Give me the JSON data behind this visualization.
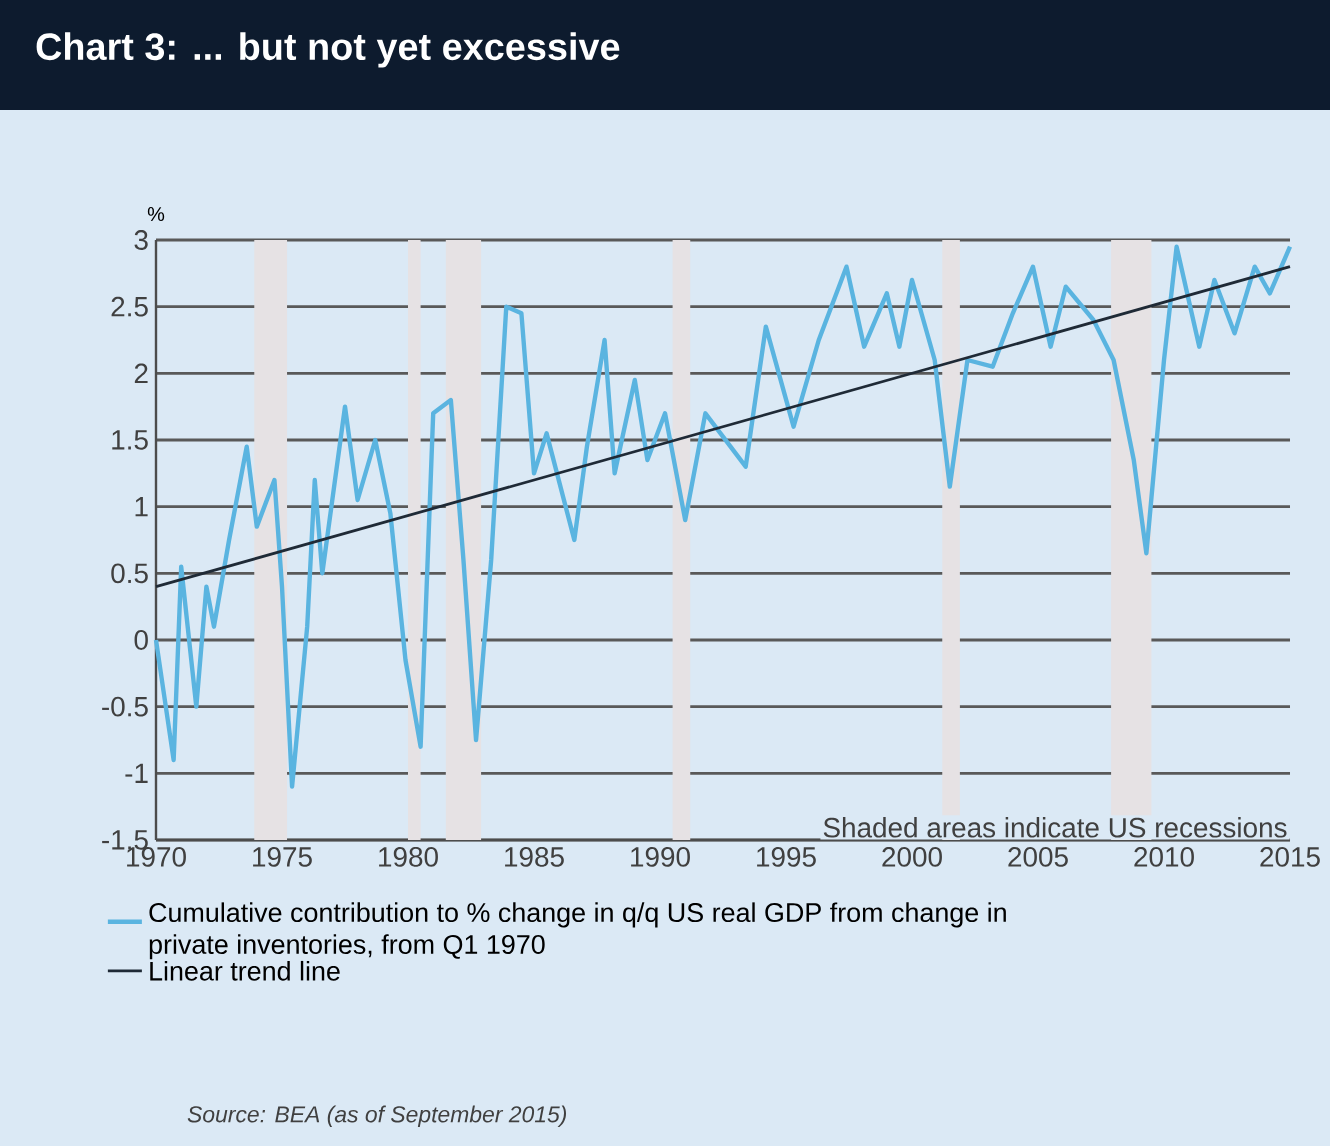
{
  "chart_data": {
    "type": "line",
    "title": "Chart 3: ... but not yet excessive",
    "ylabel": "%",
    "xlim": [
      1970,
      2015
    ],
    "xticks": [
      1970,
      1975,
      1980,
      1985,
      1990,
      1995,
      2000,
      2005,
      2010,
      2015
    ],
    "ylim": [
      -1.5,
      3
    ],
    "yticks": [
      -1.5,
      -1,
      -0.5,
      0,
      0.5,
      1,
      1.5,
      2,
      2.5,
      3
    ],
    "grid": "y",
    "legend": "bottom",
    "bands": [
      {
        "axis": "x",
        "from": 1973.9,
        "to": 1975.2,
        "color": "#e6e2e4"
      },
      {
        "axis": "x",
        "from": 1980.0,
        "to": 1980.5,
        "color": "#e6e2e4"
      },
      {
        "axis": "x",
        "from": 1981.5,
        "to": 1982.9,
        "color": "#e6e2e4"
      },
      {
        "axis": "x",
        "from": 1990.5,
        "to": 1991.2,
        "color": "#e6e2e4"
      },
      {
        "axis": "x",
        "from": 2001.2,
        "to": 2001.9,
        "color": "#e6e2e4"
      },
      {
        "axis": "x",
        "from": 2007.9,
        "to": 2009.5,
        "color": "#e6e2e4"
      }
    ],
    "series": [
      {
        "name": "Cumulative contribution to % change in q/q US real GDP from change in private inventories, from Q1 1970",
        "color": "#5ab4e0",
        "x": [
          1970,
          1970.7,
          1971,
          1971.6,
          1972,
          1972.3,
          1972.9,
          1973.6,
          1974,
          1974.7,
          1975,
          1975.4,
          1976,
          1976.3,
          1976.6,
          1977.5,
          1978,
          1978.7,
          1979.3,
          1979.9,
          1980.5,
          1981,
          1981.7,
          1982.2,
          1982.7,
          1983.3,
          1983.9,
          1984.5,
          1985,
          1985.5,
          1986.6,
          1987.1,
          1987.8,
          1988.2,
          1989,
          1989.5,
          1990.2,
          1991,
          1991.8,
          1993.4,
          1994.2,
          1995.3,
          1996.3,
          1997.4,
          1998.1,
          1999,
          1999.5,
          2000,
          2000.9,
          2001.5,
          2002.2,
          2003.2,
          2004,
          2004.8,
          2005.5,
          2006.1,
          2007.2,
          2008,
          2008.8,
          2009.3,
          2010,
          2010.5,
          2011.4,
          2012,
          2012.8,
          2013.6,
          2014.2,
          2015
        ],
        "values": [
          0,
          -0.9,
          0.55,
          -0.5,
          0.4,
          0.1,
          0.75,
          1.45,
          0.85,
          1.2,
          0.4,
          -1.1,
          0.1,
          1.2,
          0.5,
          1.75,
          1.05,
          1.5,
          0.95,
          -0.15,
          -0.8,
          1.7,
          1.8,
          0.6,
          -0.75,
          0.6,
          2.5,
          2.45,
          1.25,
          1.55,
          0.75,
          1.45,
          2.25,
          1.25,
          1.95,
          1.35,
          1.7,
          0.9,
          1.7,
          1.3,
          2.35,
          1.6,
          2.25,
          2.8,
          2.2,
          2.6,
          2.2,
          2.7,
          2.1,
          1.15,
          2.1,
          2.05,
          2.45,
          2.8,
          2.2,
          2.65,
          2.4,
          2.1,
          1.35,
          0.65,
          2.1,
          2.95,
          2.2,
          2.7,
          2.3,
          2.8,
          2.6,
          2.95
        ]
      },
      {
        "name": "Linear trend line",
        "color": "#1f2a36",
        "x": [
          1970,
          2015
        ],
        "values": [
          0.4,
          2.8
        ]
      }
    ],
    "annotations": [
      "Shaded areas indicate US recessions",
      "Source: BEA (as of September 2015)"
    ]
  }
}
